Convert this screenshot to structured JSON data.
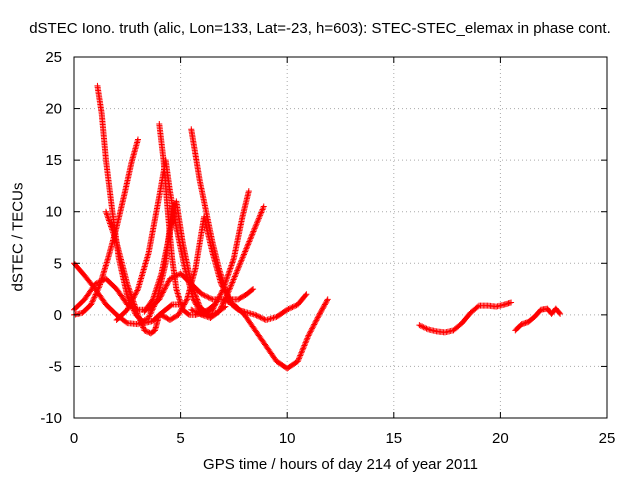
{
  "chart_data": {
    "type": "scatter",
    "title": "dSTEC Iono. truth (alic, Lon=133, Lat=-23, h=603): STEC-STEC_elemax in phase cont.",
    "xlabel": "GPS time / hours of day 214 of year 2011",
    "ylabel": "dSTEC  / TECUs",
    "xlim": [
      0,
      25
    ],
    "ylim": [
      -10,
      25
    ],
    "xticks": [
      0,
      5,
      10,
      15,
      20,
      25
    ],
    "yticks": [
      -10,
      -5,
      0,
      5,
      10,
      15,
      20,
      25
    ],
    "xtick_labels": [
      "0",
      "5",
      "10",
      "15",
      "20",
      "25"
    ],
    "ytick_labels": [
      "-10",
      "-5",
      "0",
      "5",
      "10",
      "15",
      "20",
      "25"
    ],
    "grid": true,
    "marker": "+",
    "color": "#ff0000",
    "series": [
      {
        "x": [
          1.1,
          1.3,
          1.5,
          1.8,
          2.1,
          2.5,
          2.9,
          3.3,
          3.7,
          4.0,
          4.3,
          4.6,
          4.9
        ],
        "y": [
          22.2,
          19.5,
          15.0,
          10.0,
          5.5,
          1.8,
          0.0,
          -0.8,
          -0.6,
          0.0,
          0.5,
          1.0,
          1.0
        ]
      },
      {
        "x": [
          0.0,
          0.4,
          0.8,
          1.2,
          1.6,
          2.0,
          2.4,
          2.7,
          3.0
        ],
        "y": [
          0.0,
          0.2,
          1.0,
          2.8,
          5.5,
          8.5,
          12.0,
          14.8,
          17.0
        ]
      },
      {
        "x": [
          0.0,
          0.5,
          1.0,
          1.5,
          2.0,
          2.5,
          3.0,
          3.5,
          3.9,
          4.3,
          4.6
        ],
        "y": [
          5.0,
          3.8,
          2.5,
          1.0,
          0.0,
          -0.8,
          -0.9,
          -0.3,
          1.5,
          5.0,
          10.5
        ]
      },
      {
        "x": [
          0.0,
          0.5,
          1.0,
          1.5,
          2.0,
          2.5,
          3.0,
          3.5,
          4.0,
          4.5,
          5.0,
          5.5,
          6.0,
          6.5,
          7.0,
          7.5,
          8.0,
          8.5,
          9.0,
          9.5,
          10.0,
          10.5,
          11.0,
          11.5,
          11.9
        ],
        "y": [
          0.5,
          1.5,
          3.0,
          3.5,
          2.5,
          1.0,
          0.5,
          0.5,
          1.5,
          3.5,
          4.0,
          3.0,
          2.0,
          1.5,
          1.5,
          1.0,
          0.0,
          -1.5,
          -3.0,
          -4.5,
          -5.2,
          -4.5,
          -2.0,
          0.0,
          1.5
        ]
      },
      {
        "x": [
          1.5,
          2.0,
          2.5,
          3.0,
          3.3,
          3.6,
          3.8,
          4.0
        ],
        "y": [
          10.0,
          7.0,
          3.0,
          0.0,
          -1.5,
          -1.8,
          -1.5,
          0.0
        ]
      },
      {
        "x": [
          2.0,
          2.5,
          3.0,
          3.5,
          4.0,
          4.3,
          4.5,
          4.8,
          5.2,
          5.6,
          6.0,
          6.4,
          6.8,
          7.2,
          7.6,
          8.0,
          8.5,
          8.9
        ],
        "y": [
          -0.5,
          0.5,
          2.5,
          6.0,
          11.5,
          15.0,
          12.0,
          8.5,
          4.5,
          1.5,
          0.0,
          -0.3,
          0.3,
          2.0,
          4.0,
          6.0,
          8.5,
          10.5
        ]
      },
      {
        "x": [
          4.0,
          4.2,
          4.4,
          4.6,
          4.8,
          5.1,
          5.4,
          5.7,
          6.0,
          6.3,
          6.6
        ],
        "y": [
          18.5,
          15.0,
          10.0,
          5.5,
          2.5,
          0.5,
          0.0,
          0.0,
          0.2,
          0.5,
          1.0
        ]
      },
      {
        "x": [
          3.3,
          3.7,
          4.1,
          4.5,
          4.8,
          5.1,
          5.5,
          5.9,
          6.3,
          6.7,
          7.1
        ],
        "y": [
          0.3,
          1.5,
          4.0,
          8.0,
          11.0,
          7.0,
          3.0,
          0.8,
          0.0,
          0.2,
          0.8
        ]
      },
      {
        "x": [
          5.5,
          5.7,
          5.9,
          6.2,
          6.5,
          6.8,
          7.1,
          7.4,
          7.7,
          8.0,
          8.5,
          9.0,
          9.5,
          10.0,
          10.5,
          10.9
        ],
        "y": [
          18.0,
          15.5,
          13.0,
          10.0,
          7.0,
          4.5,
          2.5,
          1.0,
          0.5,
          0.3,
          0.0,
          -0.5,
          -0.2,
          0.5,
          1.0,
          2.0
        ]
      },
      {
        "x": [
          4.1,
          4.5,
          4.9,
          5.3,
          5.7,
          6.1,
          6.5,
          6.9,
          7.3,
          7.7,
          8.1,
          8.4
        ],
        "y": [
          0.0,
          -0.5,
          0.0,
          1.5,
          4.5,
          9.5,
          6.0,
          3.0,
          1.5,
          1.5,
          2.0,
          2.5
        ]
      },
      {
        "x": [
          5.5,
          6.0,
          6.5,
          7.0,
          7.5,
          7.9,
          8.2
        ],
        "y": [
          0.5,
          0.0,
          0.5,
          2.5,
          5.5,
          9.5,
          12.0
        ]
      },
      {
        "x": [
          16.2,
          16.6,
          17.0,
          17.4,
          17.8,
          18.2,
          18.6,
          19.0,
          19.4,
          19.8,
          20.2,
          20.5
        ],
        "y": [
          -1.0,
          -1.4,
          -1.6,
          -1.7,
          -1.5,
          -0.8,
          0.2,
          0.9,
          0.9,
          0.8,
          1.0,
          1.2
        ]
      },
      {
        "x": [
          20.7,
          21.0,
          21.3,
          21.6,
          21.9,
          22.2,
          22.4,
          22.6,
          22.8
        ],
        "y": [
          -1.5,
          -0.9,
          -0.7,
          -0.2,
          0.5,
          0.6,
          0.1,
          0.6,
          0.1
        ]
      }
    ]
  }
}
